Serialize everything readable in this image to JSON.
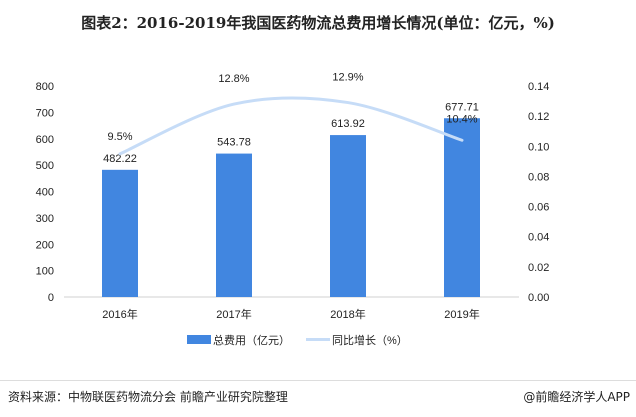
{
  "title": "图表2：2016-2019年我国医药物流总费用增长情况(单位：亿元，%)",
  "chart_data": {
    "type": "bar+line",
    "categories": [
      "2016年",
      "2017年",
      "2018年",
      "2019年"
    ],
    "series": [
      {
        "name": "总费用（亿元）",
        "type": "bar",
        "axis": "left",
        "values": [
          482.22,
          543.78,
          613.92,
          677.71
        ],
        "labels": [
          "482.22",
          "543.78",
          "613.92",
          "677.71"
        ],
        "color": "#4186e0"
      },
      {
        "name": "同比增长（%）",
        "type": "line",
        "axis": "right",
        "smooth": true,
        "values": [
          0.095,
          0.128,
          0.129,
          0.104
        ],
        "labels": [
          "9.5%",
          "12.8%",
          "12.9%",
          "10.4%"
        ],
        "color": "#c6dcf7"
      }
    ],
    "left_axis": {
      "ylim": [
        0,
        800
      ],
      "ticks": [
        "0",
        "100",
        "200",
        "300",
        "400",
        "500",
        "600",
        "700",
        "800"
      ]
    },
    "right_axis": {
      "ylim": [
        0,
        0.14
      ],
      "ticks": [
        "0.00",
        "0.02",
        "0.04",
        "0.06",
        "0.08",
        "0.10",
        "0.12",
        "0.14"
      ]
    },
    "grid": false,
    "legend": "bottom"
  },
  "footer": {
    "source": "资料来源：中物联医药物流分会 前瞻产业研究院整理",
    "credit": "@前瞻经济学人APP"
  }
}
